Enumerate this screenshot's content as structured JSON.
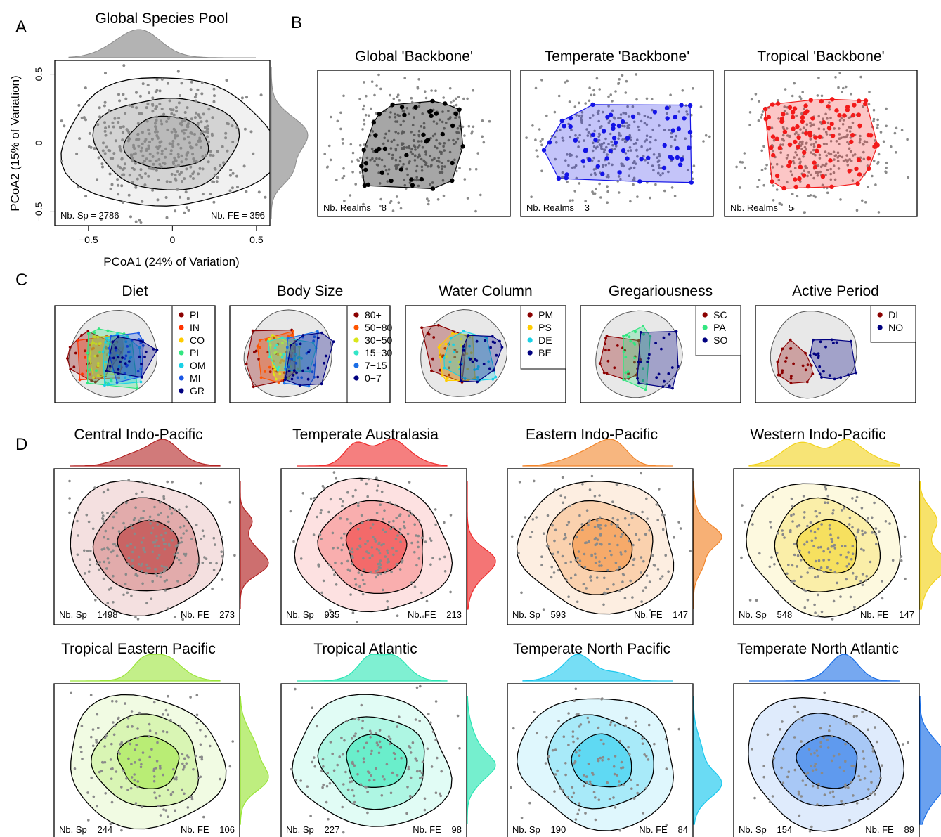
{
  "panel_letters": {
    "a": "A",
    "b": "B",
    "c": "C",
    "d": "D"
  },
  "colors": {
    "global": "#8c8c8c",
    "global_backbone": "#000000",
    "temperate_backbone": "#1414e6",
    "tropical_backbone": "#f21a1a",
    "point": "#8a8a8a"
  },
  "chart_data": [
    {
      "id": "global-species-pool",
      "type": "scatter",
      "title": "Global Species Pool",
      "xlabel": "PCoA1 (24% of Variation)",
      "ylabel": "PCoA2 (15% of Variation)",
      "xlim": [
        -0.7,
        0.58
      ],
      "ylim": [
        -0.6,
        0.6
      ],
      "xticks": [
        -0.5,
        0,
        0.5
      ],
      "xtick_labels": [
        "−0.5",
        "0",
        "0.5"
      ],
      "yticks": [
        -0.5,
        0,
        0.5
      ],
      "ytick_labels": [
        "−0.5",
        "0",
        "0.5"
      ],
      "contour_levels": 3,
      "marginal_densities": true,
      "nb_sp_label": "Nb. Sp = 2786",
      "nb_fe_label": "Nb. FE = 356",
      "color": "#8c8c8c"
    },
    {
      "id": "backbones",
      "type": "scatter",
      "panels": [
        {
          "title": "Global 'Backbone'",
          "realms_label": "Nb. Realms = 8",
          "color": "#000000"
        },
        {
          "title": "Temperate 'Backbone'",
          "realms_label": "Nb. Realms = 3",
          "color": "#1414e6"
        },
        {
          "title": "Tropical 'Backbone'",
          "realms_label": "Nb. Realms = 5",
          "color": "#f21a1a"
        }
      ]
    },
    {
      "id": "traits",
      "type": "scatter",
      "panels": [
        {
          "title": "Diet",
          "legend": [
            {
              "label": "PI",
              "color": "#8b0000"
            },
            {
              "label": "IN",
              "color": "#ff3300"
            },
            {
              "label": "CO",
              "color": "#ffcc00"
            },
            {
              "label": "PL",
              "color": "#33e680"
            },
            {
              "label": "OM",
              "color": "#1ad1e6"
            },
            {
              "label": "MI",
              "color": "#1a57e6"
            },
            {
              "label": "GR",
              "color": "#000080"
            }
          ]
        },
        {
          "title": "Body Size",
          "legend": [
            {
              "label": "80+",
              "color": "#8b0000"
            },
            {
              "label": "50−80",
              "color": "#ff5500"
            },
            {
              "label": "30−50",
              "color": "#d9e61a"
            },
            {
              "label": "15−30",
              "color": "#33e6c8"
            },
            {
              "label": "7−15",
              "color": "#1a6ee6"
            },
            {
              "label": "0−7",
              "color": "#000080"
            }
          ]
        },
        {
          "title": "Water Column",
          "legend": [
            {
              "label": "PM",
              "color": "#8b0000"
            },
            {
              "label": "PS",
              "color": "#ffcc00"
            },
            {
              "label": "DE",
              "color": "#1ad1e6"
            },
            {
              "label": "BE",
              "color": "#000080"
            }
          ]
        },
        {
          "title": "Gregariousness",
          "legend": [
            {
              "label": "SC",
              "color": "#8b0000"
            },
            {
              "label": "PA",
              "color": "#33e680"
            },
            {
              "label": "SO",
              "color": "#000080"
            }
          ]
        },
        {
          "title": "Active Period",
          "legend": [
            {
              "label": "DI",
              "color": "#8b0000"
            },
            {
              "label": "NO",
              "color": "#000080"
            }
          ]
        }
      ]
    },
    {
      "id": "realms",
      "type": "scatter",
      "panels": [
        {
          "title": "Central Indo-Pacific",
          "nb_sp_label": "Nb. Sp = 1498",
          "nb_fe_label": "Nb. FE = 273",
          "color": "#b22222"
        },
        {
          "title": "Temperate Australasia",
          "nb_sp_label": "Nb. Sp = 935",
          "nb_fe_label": "Nb. FE = 213",
          "color": "#ee2a2a"
        },
        {
          "title": "Eastern Indo-Pacific",
          "nb_sp_label": "Nb. Sp = 593",
          "nb_fe_label": "Nb. FE = 147",
          "color": "#f2852a"
        },
        {
          "title": "Western Indo-Pacific",
          "nb_sp_label": "Nb. Sp = 548",
          "nb_fe_label": "Nb. FE = 147",
          "color": "#f2d21a"
        },
        {
          "title": "Tropical Eastern Pacific",
          "nb_sp_label": "Nb. Sp = 244",
          "nb_fe_label": "Nb. FE = 106",
          "color": "#9be53a"
        },
        {
          "title": "Tropical Atlantic",
          "nb_sp_label": "Nb. Sp = 227",
          "nb_fe_label": "Nb. FE = 98",
          "color": "#2ae6b4"
        },
        {
          "title": "Temperate North Pacific",
          "nb_sp_label": "Nb. Sp = 190",
          "nb_fe_label": "Nb. FE = 84",
          "color": "#1ac8ee"
        },
        {
          "title": "Temperate North Atlantic",
          "nb_sp_label": "Nb. Sp = 154",
          "nb_fe_label": "Nb. FE = 89",
          "color": "#1a6ee6"
        }
      ]
    }
  ]
}
